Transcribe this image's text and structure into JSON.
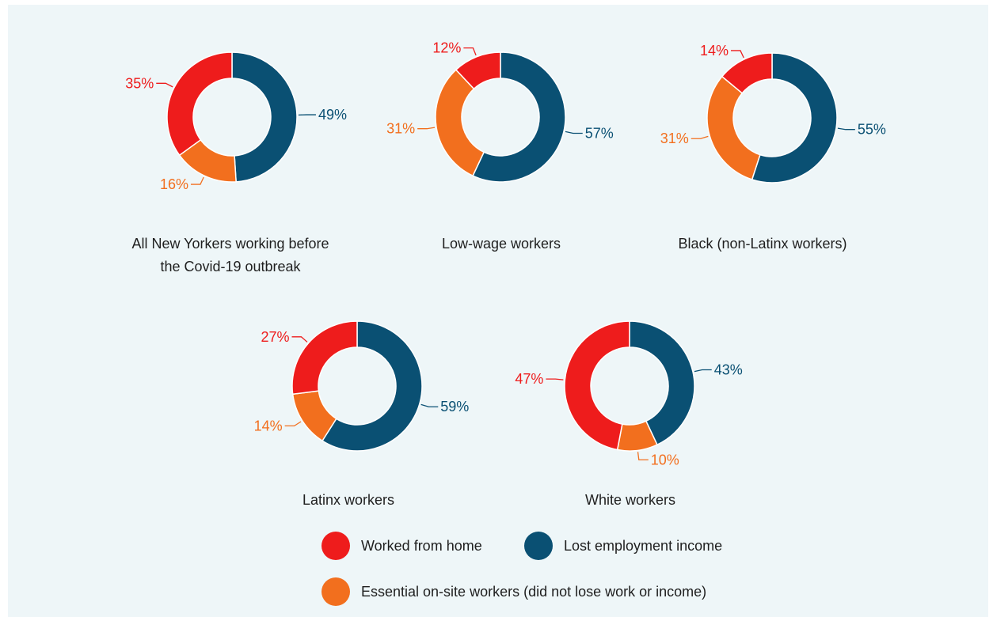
{
  "chart_data": {
    "type": "pie",
    "subtype": "donut",
    "legend_placement": "bottom",
    "colors": {
      "worked_from_home": "#ee1c1c",
      "lost_income": "#0a5073",
      "essential": "#f26f1e"
    },
    "legend": [
      {
        "key": "worked_from_home",
        "label": "Worked from home"
      },
      {
        "key": "lost_income",
        "label": "Lost employment income"
      },
      {
        "key": "essential",
        "label": "Essential on-site workers (did not lose work or income)"
      }
    ],
    "charts": [
      {
        "id": "all",
        "caption_lines": [
          "All New Yorkers working before",
          "the Covid-19 outbreak"
        ],
        "slices": [
          {
            "key": "lost_income",
            "value": 49,
            "label": "49%"
          },
          {
            "key": "essential",
            "value": 16,
            "label": "16%"
          },
          {
            "key": "worked_from_home",
            "value": 35,
            "label": "35%"
          }
        ]
      },
      {
        "id": "lowwage",
        "caption_lines": [
          "Low-wage workers"
        ],
        "slices": [
          {
            "key": "lost_income",
            "value": 57,
            "label": "57%"
          },
          {
            "key": "essential",
            "value": 31,
            "label": "31%"
          },
          {
            "key": "worked_from_home",
            "value": 12,
            "label": "12%"
          }
        ]
      },
      {
        "id": "black",
        "caption_lines": [
          "Black (non-Latinx workers)"
        ],
        "slices": [
          {
            "key": "lost_income",
            "value": 55,
            "label": "55%"
          },
          {
            "key": "essential",
            "value": 31,
            "label": "31%"
          },
          {
            "key": "worked_from_home",
            "value": 14,
            "label": "14%"
          }
        ]
      },
      {
        "id": "latinx",
        "caption_lines": [
          "Latinx workers"
        ],
        "slices": [
          {
            "key": "lost_income",
            "value": 59,
            "label": "59%"
          },
          {
            "key": "essential",
            "value": 14,
            "label": "14%"
          },
          {
            "key": "worked_from_home",
            "value": 27,
            "label": "27%"
          }
        ]
      },
      {
        "id": "white",
        "caption_lines": [
          "White workers"
        ],
        "slices": [
          {
            "key": "lost_income",
            "value": 43,
            "label": "43%"
          },
          {
            "key": "essential",
            "value": 10,
            "label": "10%"
          },
          {
            "key": "worked_from_home",
            "value": 47,
            "label": "47%"
          }
        ]
      }
    ]
  }
}
